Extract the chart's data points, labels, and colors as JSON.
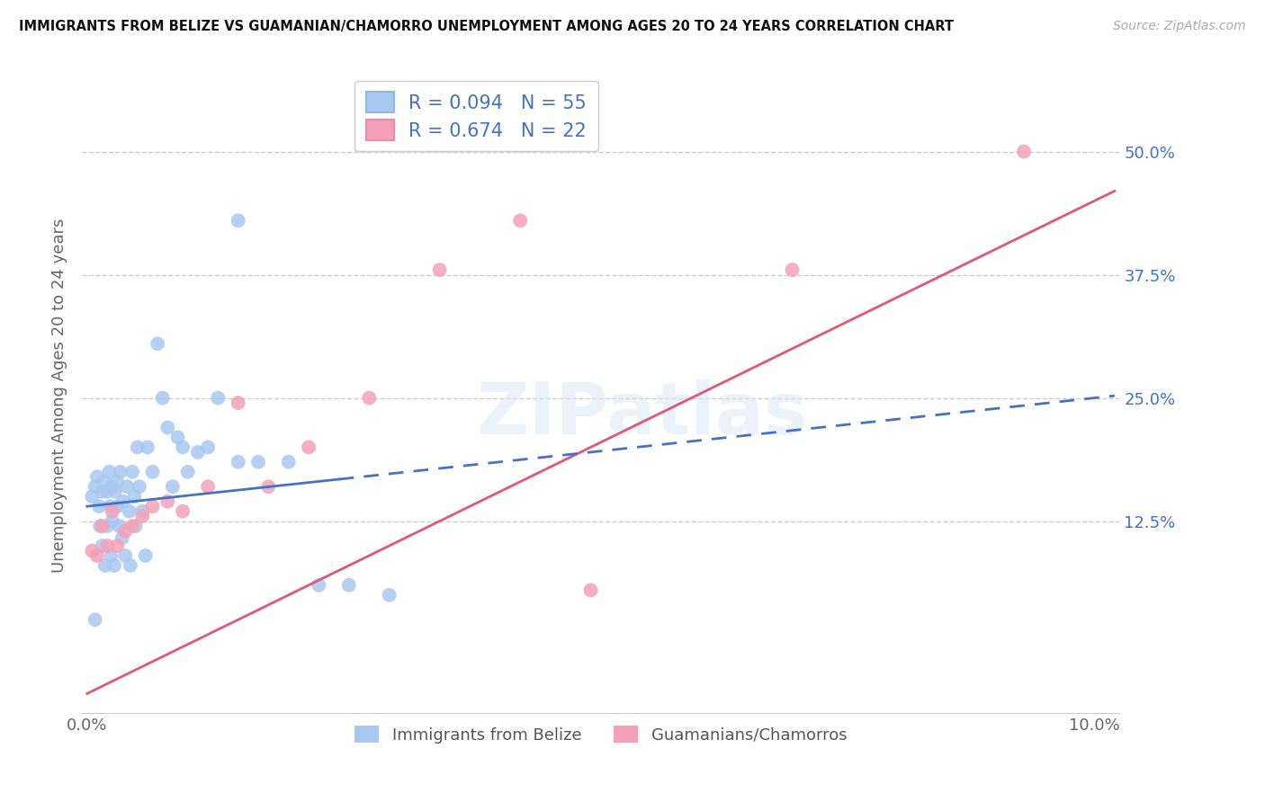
{
  "title": "IMMIGRANTS FROM BELIZE VS GUAMANIAN/CHAMORRO UNEMPLOYMENT AMONG AGES 20 TO 24 YEARS CORRELATION CHART",
  "source": "Source: ZipAtlas.com",
  "ylabel": "Unemployment Among Ages 20 to 24 years",
  "blue_color": "#a8c8f0",
  "pink_color": "#f5a0b8",
  "blue_line_color": "#4472c4",
  "pink_line_color": "#e05878",
  "r_blue": 0.094,
  "n_blue": 55,
  "r_pink": 0.674,
  "n_pink": 22,
  "watermark": "ZIPatlas",
  "blue_x": [
    0.0005,
    0.0008,
    0.001,
    0.0012,
    0.0013,
    0.0015,
    0.0015,
    0.0017,
    0.0018,
    0.002,
    0.002,
    0.0022,
    0.0023,
    0.0024,
    0.0025,
    0.0025,
    0.0027,
    0.0028,
    0.003,
    0.003,
    0.0032,
    0.0033,
    0.0035,
    0.0036,
    0.0038,
    0.004,
    0.0042,
    0.0043,
    0.0045,
    0.0047,
    0.0048,
    0.005,
    0.0052,
    0.0055,
    0.0058,
    0.006,
    0.0065,
    0.007,
    0.0075,
    0.008,
    0.0085,
    0.009,
    0.0095,
    0.01,
    0.011,
    0.012,
    0.013,
    0.015,
    0.017,
    0.02,
    0.023,
    0.026,
    0.03,
    0.015,
    0.0008
  ],
  "blue_y": [
    0.15,
    0.16,
    0.17,
    0.14,
    0.12,
    0.155,
    0.1,
    0.165,
    0.08,
    0.155,
    0.12,
    0.175,
    0.14,
    0.09,
    0.16,
    0.125,
    0.08,
    0.155,
    0.165,
    0.14,
    0.12,
    0.175,
    0.108,
    0.145,
    0.09,
    0.16,
    0.135,
    0.08,
    0.175,
    0.15,
    0.12,
    0.2,
    0.16,
    0.135,
    0.09,
    0.2,
    0.175,
    0.305,
    0.25,
    0.22,
    0.16,
    0.21,
    0.2,
    0.175,
    0.195,
    0.2,
    0.25,
    0.185,
    0.185,
    0.185,
    0.06,
    0.06,
    0.05,
    0.43,
    0.025
  ],
  "pink_x": [
    0.0005,
    0.001,
    0.0015,
    0.002,
    0.0025,
    0.003,
    0.0038,
    0.0045,
    0.0055,
    0.0065,
    0.008,
    0.0095,
    0.012,
    0.015,
    0.018,
    0.022,
    0.028,
    0.035,
    0.043,
    0.05,
    0.07,
    0.093
  ],
  "pink_y": [
    0.095,
    0.09,
    0.12,
    0.1,
    0.135,
    0.1,
    0.115,
    0.12,
    0.13,
    0.14,
    0.145,
    0.135,
    0.16,
    0.245,
    0.16,
    0.2,
    0.25,
    0.38,
    0.43,
    0.055,
    0.38,
    0.5
  ]
}
